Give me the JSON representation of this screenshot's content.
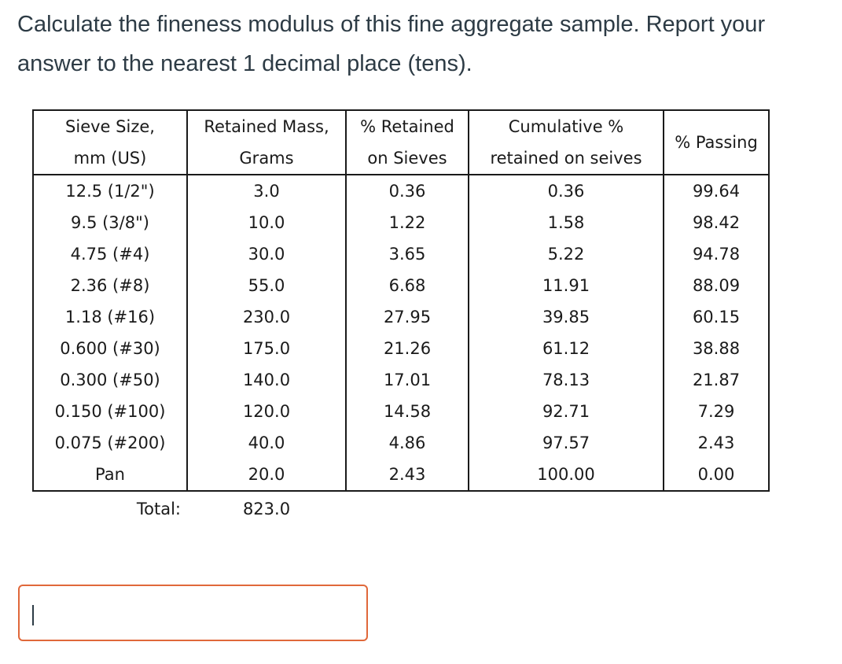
{
  "question": {
    "text": "Calculate the fineness modulus of this fine aggregate sample. Report your answer to the nearest 1 decimal place (tens)."
  },
  "table": {
    "headers": [
      [
        "Sieve Size,",
        "mm (US)"
      ],
      [
        "Retained Mass,",
        "Grams"
      ],
      [
        "% Retained",
        "on Sieves"
      ],
      [
        "Cumulative %",
        "retained on seives"
      ],
      [
        "% Passing"
      ]
    ],
    "rows": [
      [
        "12.5 (1/2\")",
        "3.0",
        "0.36",
        "0.36",
        "99.64"
      ],
      [
        "9.5 (3/8\")",
        "10.0",
        "1.22",
        "1.58",
        "98.42"
      ],
      [
        "4.75 (#4)",
        "30.0",
        "3.65",
        "5.22",
        "94.78"
      ],
      [
        "2.36 (#8)",
        "55.0",
        "6.68",
        "11.91",
        "88.09"
      ],
      [
        "1.18 (#16)",
        "230.0",
        "27.95",
        "39.85",
        "60.15"
      ],
      [
        "0.600 (#30)",
        "175.0",
        "21.26",
        "61.12",
        "38.88"
      ],
      [
        "0.300 (#50)",
        "140.0",
        "17.01",
        "78.13",
        "21.87"
      ],
      [
        "0.150 (#100)",
        "120.0",
        "14.58",
        "92.71",
        "7.29"
      ],
      [
        "0.075 (#200)",
        "40.0",
        "4.86",
        "97.57",
        "2.43"
      ],
      [
        "Pan",
        "20.0",
        "2.43",
        "100.00",
        "0.00"
      ]
    ],
    "total_label": "Total:",
    "total_value": "823.0"
  },
  "answer": {
    "value": "",
    "placeholder": ""
  },
  "colors": {
    "answer_border": "#e0683a",
    "text": "#2d3b45"
  }
}
